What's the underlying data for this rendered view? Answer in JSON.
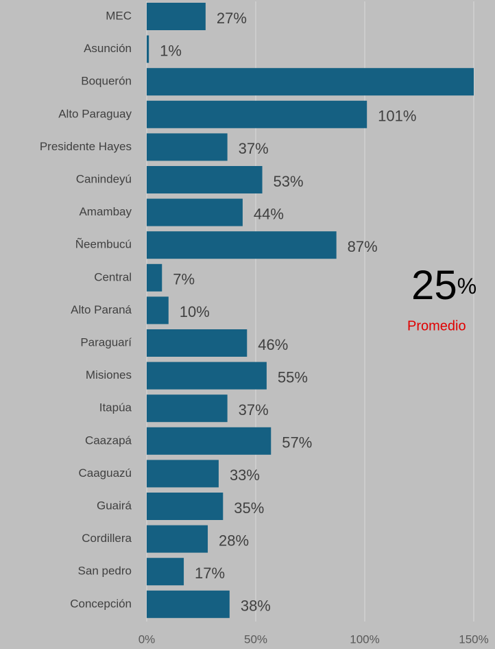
{
  "chart_data": {
    "type": "barh",
    "categories": [
      "MEC",
      "Asunción",
      "Boquerón",
      "Alto Paraguay",
      "Presidente Hayes",
      "Canindeyú",
      "Amambay",
      "Ñeembucú",
      "Central",
      "Alto Paraná",
      "Paraguarí",
      "Misiones",
      "Itapúa",
      "Caazapá",
      "Caaguazú",
      "Guairá",
      "Cordillera",
      "San pedro",
      "Concepción"
    ],
    "values": [
      27,
      1,
      150,
      101,
      37,
      53,
      44,
      87,
      7,
      10,
      46,
      55,
      37,
      57,
      33,
      35,
      28,
      17,
      38
    ],
    "value_labels": [
      "27%",
      "1%",
      null,
      "101%",
      "37%",
      "53%",
      "44%",
      "87%",
      "7%",
      "10%",
      "46%",
      "55%",
      "37%",
      "57%",
      "33%",
      "35%",
      "28%",
      "17%",
      "38%"
    ],
    "color": "#156082",
    "xlim": [
      0,
      150
    ],
    "xticks": [
      {
        "value": 0,
        "label": "0%"
      },
      {
        "value": 50,
        "label": "50%"
      },
      {
        "value": 100,
        "label": "100%"
      },
      {
        "value": 150,
        "label": "150%"
      }
    ],
    "grid": true,
    "annotation": {
      "value": "25",
      "unit": "%",
      "caption": "Promedio"
    }
  }
}
